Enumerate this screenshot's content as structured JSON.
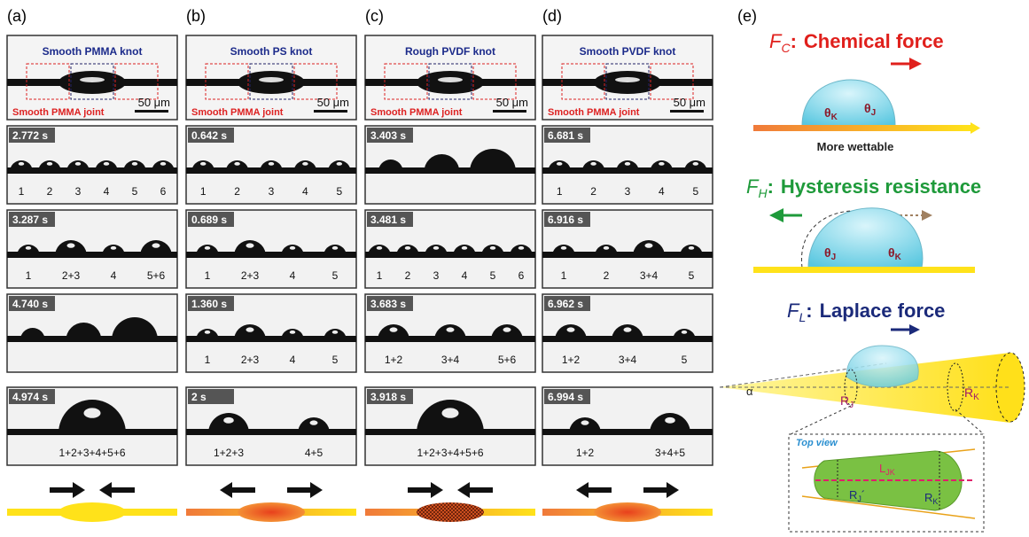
{
  "panels": [
    {
      "label": "(a)",
      "header": {
        "title": "Smooth PMMA knot",
        "joint": "Smooth PMMA joint",
        "scale": "50 μm"
      },
      "frames": [
        {
          "time": "2.772 s",
          "labels": [
            "1",
            "2",
            "3",
            "4",
            "5",
            "6"
          ]
        },
        {
          "time": "3.287 s",
          "labels": [
            "1",
            "2+3",
            "4",
            "5+6"
          ]
        },
        {
          "time": "4.740 s",
          "labels": []
        },
        {
          "time": "4.974 s",
          "labels": [
            "1+2+3+4+5+6"
          ]
        }
      ]
    },
    {
      "label": "(b)",
      "header": {
        "title": "Smooth PS knot",
        "joint": "Smooth PMMA joint",
        "scale": "50 μm"
      },
      "frames": [
        {
          "time": "0.642 s",
          "labels": [
            "1",
            "2",
            "3",
            "4",
            "5"
          ]
        },
        {
          "time": "0.689 s",
          "labels": [
            "1",
            "2+3",
            "4",
            "5"
          ]
        },
        {
          "time": "1.360 s",
          "labels": [
            "1",
            "2+3",
            "4",
            "5"
          ]
        },
        {
          "time": "2 s",
          "labels": [
            "1+2+3",
            "4+5"
          ]
        }
      ]
    },
    {
      "label": "(c)",
      "header": {
        "title": "Rough PVDF knot",
        "joint": "Smooth PMMA joint",
        "scale": "50 μm"
      },
      "frames": [
        {
          "time": "3.403 s",
          "labels": []
        },
        {
          "time": "3.481 s",
          "labels": [
            "1",
            "2",
            "3",
            "4",
            "5",
            "6"
          ]
        },
        {
          "time": "3.683 s",
          "labels": [
            "1+2",
            "3+4",
            "5+6"
          ]
        },
        {
          "time": "3.918 s",
          "labels": [
            "1+2+3+4+5+6"
          ]
        }
      ]
    },
    {
      "label": "(d)",
      "header": {
        "title": "Smooth PVDF knot",
        "joint": "Smooth PMMA joint",
        "scale": "50 μm"
      },
      "frames": [
        {
          "time": "6.681 s",
          "labels": [
            "1",
            "2",
            "3",
            "4",
            "5"
          ]
        },
        {
          "time": "6.916 s",
          "labels": [
            "1",
            "2",
            "3+4",
            "5"
          ]
        },
        {
          "time": "6.962 s",
          "labels": [
            "1+2",
            "3+4",
            "5"
          ]
        },
        {
          "time": "6.994 s",
          "labels": [
            "1+2",
            "3+4+5"
          ]
        }
      ]
    }
  ],
  "panel_e": {
    "label": "(e)",
    "chemical": {
      "symbol": "F",
      "sub": "C",
      "sep": ":",
      "name": "Chemical force",
      "theta_k": {
        "base": "θ",
        "sub": "K"
      },
      "theta_j": {
        "base": "θ",
        "sub": "J"
      },
      "note": "More wettable"
    },
    "hysteresis": {
      "symbol": "F",
      "sub": "H",
      "sep": ":",
      "name": "Hysteresis resistance",
      "theta_j": {
        "base": "θ",
        "sub": "J"
      },
      "theta_k": {
        "base": "θ",
        "sub": "K"
      }
    },
    "laplace": {
      "symbol": "F",
      "sub": "L",
      "sep": ":",
      "name": "Laplace force",
      "alpha": "α",
      "rj": {
        "base": "R",
        "sub": "J"
      },
      "rk": {
        "base": "R",
        "sub": "K"
      }
    },
    "top_view": {
      "title": "Top view",
      "ljk": {
        "base": "L",
        "sub": "JK"
      },
      "rj": {
        "base": "R",
        "sub": "J",
        "prime": "´"
      },
      "rk": {
        "base": "R",
        "sub": "K",
        "prime": "´"
      }
    }
  }
}
